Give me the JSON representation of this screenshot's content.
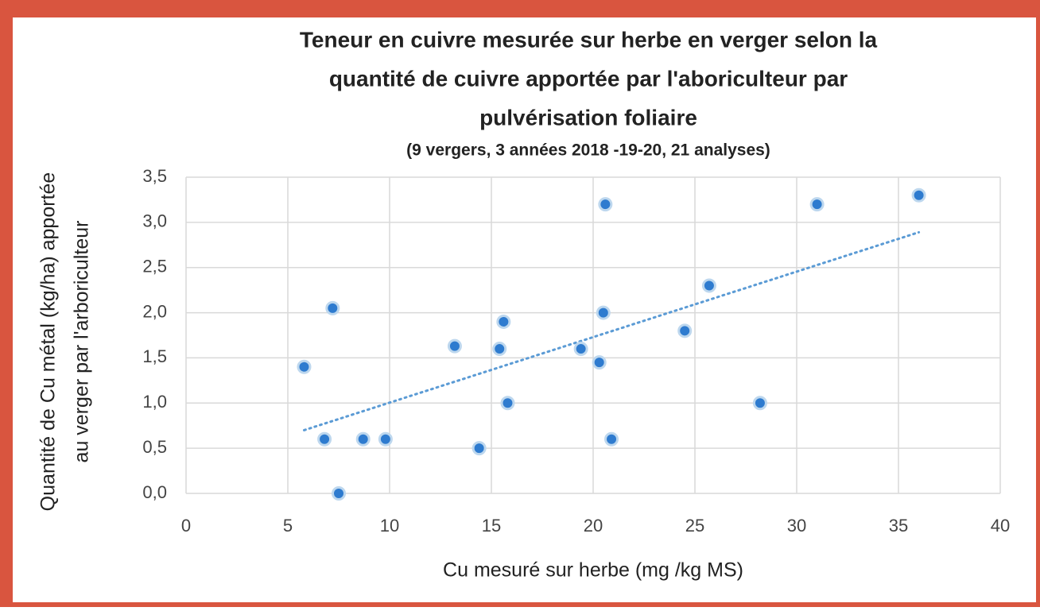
{
  "chart_data": {
    "type": "scatter",
    "title": [
      "Teneur en cuivre mesurée sur herbe en verger selon la",
      "quantité de cuivre apportée par l'aboriculteur par",
      "pulvérisation foliaire"
    ],
    "subtitle": "(9 vergers, 3 années 2018 -19-20, 21 analyses)",
    "x_label": "Cu mesuré sur herbe (mg /kg MS)",
    "y_label": [
      "Quantité de Cu métal (kg/ha) apportée",
      "au verger par l'arboriculteur"
    ],
    "x": [
      5.8,
      7.2,
      6.8,
      7.5,
      8.7,
      9.8,
      13.2,
      14.4,
      15.4,
      15.6,
      15.8,
      19.4,
      20.3,
      20.5,
      20.6,
      20.9,
      24.5,
      25.7,
      28.2,
      31.0,
      36.0
    ],
    "values": [
      1.4,
      2.05,
      0.6,
      0,
      0.6,
      0.6,
      1.63,
      0.5,
      1.6,
      1.9,
      1.0,
      1.6,
      1.45,
      2.0,
      3.2,
      0.6,
      1.8,
      2.3,
      1.0,
      3.2,
      3.3
    ],
    "color": "#2e7bcf",
    "trendline": {
      "x": [
        5.8,
        36.0
      ],
      "values": [
        0.7,
        2.89
      ],
      "color": "#5b9bd5"
    },
    "xlim": [
      0,
      40
    ],
    "xticks": [
      0,
      5,
      10,
      15,
      20,
      25,
      30,
      35,
      40
    ],
    "ylim": [
      0,
      3.5
    ],
    "yticks": [
      {
        "value": 0,
        "label": "0,0"
      },
      {
        "value": 0.5,
        "label": "0,5"
      },
      {
        "value": 1,
        "label": "1,0"
      },
      {
        "value": 1.5,
        "label": "1,5"
      },
      {
        "value": 2,
        "label": "2,0"
      },
      {
        "value": 2.5,
        "label": "2,5"
      },
      {
        "value": 3,
        "label": "3,0"
      },
      {
        "value": 3.5,
        "label": "3,5"
      }
    ],
    "grid": true
  }
}
